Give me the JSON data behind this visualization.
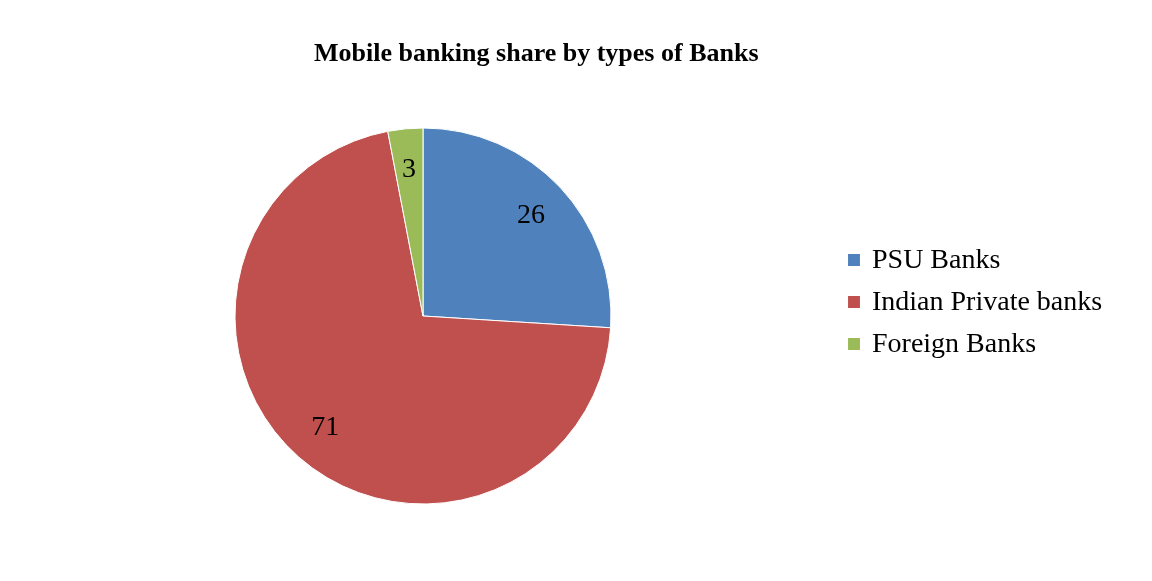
{
  "chart_data": {
    "type": "pie",
    "title": "Mobile banking share by types of Banks",
    "categories": [
      "PSU Banks",
      "Indian Private banks",
      "Foreign Banks"
    ],
    "values": [
      26,
      71,
      3
    ],
    "colors": [
      "#4f81bd",
      "#c0504d",
      "#9bbb59"
    ],
    "data_labels": true,
    "legend": "right"
  }
}
